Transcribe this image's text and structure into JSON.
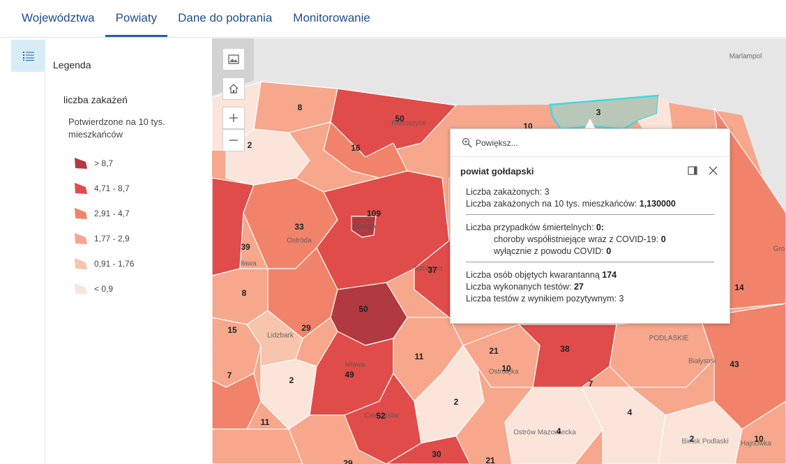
{
  "tabs": [
    "Województwa",
    "Powiaty",
    "Dane do pobrania",
    "Monitorowanie"
  ],
  "active_tab": 1,
  "legend": {
    "title": "Legenda",
    "layer": "liczba zakażeń",
    "field": "Potwierdzone na 10 tys. mieszkańców",
    "classes": [
      {
        "label": "> 8,7",
        "color": "#b03a3f"
      },
      {
        "label": "4,71 - 8,7",
        "color": "#e04c4a"
      },
      {
        "label": "2,91 - 4,7",
        "color": "#f1836a"
      },
      {
        "label": "1,77 - 2,9",
        "color": "#f6a78c"
      },
      {
        "label": "0,91 - 1,76",
        "color": "#f8c4ac"
      },
      {
        "label": "< 0,9",
        "color": "#fbe4da"
      }
    ]
  },
  "map": {
    "district_counts": [
      "8",
      "50",
      "10",
      "3",
      "2",
      "16",
      "109",
      "33",
      "39",
      "37",
      "8",
      "50",
      "14",
      "15",
      "29",
      "21",
      "38",
      "11",
      "10",
      "43",
      "7",
      "2",
      "49",
      "7",
      "2",
      "4",
      "11",
      "52",
      "4",
      "2",
      "10",
      "30",
      "21",
      "29"
    ],
    "place_names": [
      "Marlampol",
      "Ostróda",
      "Iława",
      "Lidzbark",
      "Mława",
      "Ciechanów",
      "Ostrołęka",
      "Ostrów Mazowiecka",
      "Białystok",
      "Bielsk Podlaski",
      "Hajnówka",
      "Gro",
      "PODLASKIE",
      "Olsztyn",
      "Szczytno",
      "Bartoszyce"
    ],
    "highlight_color": "#40d8e0",
    "selected_fill": "#b9c7b8"
  },
  "popup": {
    "zoom_label": "Powiększ...",
    "title": "powiat gołdapski",
    "lines": {
      "cases_label": "Liczba zakażonych:",
      "cases_value": "3",
      "cases_10k_label": "Liczba zakażonych na 10 tys. mieszkańców:",
      "cases_10k_value": "1,130000",
      "deaths_label": "Liczba przypadków śmiertelnych:",
      "deaths_value": "0:",
      "comorb_label": "choroby współistniejące wraz z COVID-19:",
      "comorb_value": "0",
      "covid_only_label": "wyłącznie z powodu COVID:",
      "covid_only_value": "0",
      "quarantine_label": "Liczba osób objętych kwarantanną",
      "quarantine_value": "174",
      "tests_label": "Liczba wykonanych testów:",
      "tests_value": "27",
      "positive_label": "Liczba testów z wynikiem pozytywnym:",
      "positive_value": "3"
    }
  },
  "icons": {
    "rail": "legend-list-icon",
    "map_buttons": [
      "basemap-gallery-icon",
      "home-icon",
      "zoom-in-icon",
      "zoom-out-icon"
    ],
    "popup": [
      "zoom-to-icon",
      "dock-icon",
      "close-icon"
    ]
  }
}
